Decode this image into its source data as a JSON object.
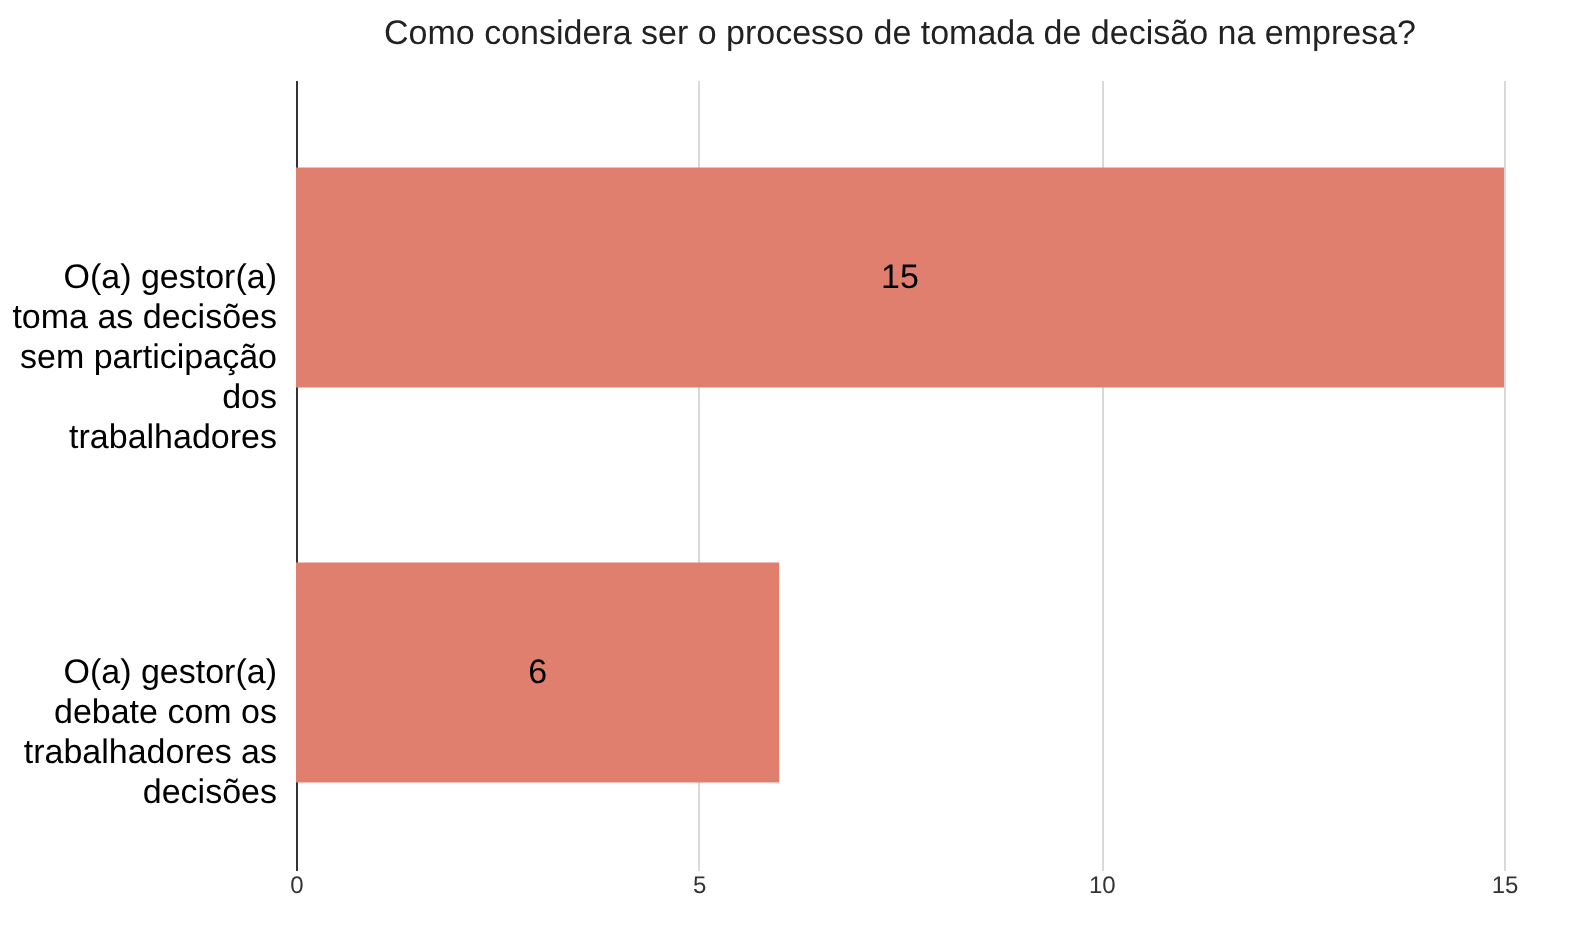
{
  "chart_data": {
    "type": "bar",
    "orientation": "horizontal",
    "title": "Como considera ser o processo de tomada de decisão na empresa?",
    "categories": [
      "O(a) gestor(a) toma as decisões sem participação dos trabalhadores",
      "O(a) gestor(a) debate com os trabalhadores as decisões"
    ],
    "values": [
      15,
      6
    ],
    "color": "#e07f6d",
    "xlim": [
      0,
      15
    ],
    "xticks": [
      0,
      5,
      10,
      15
    ],
    "grid": "x",
    "data_labels": true
  }
}
